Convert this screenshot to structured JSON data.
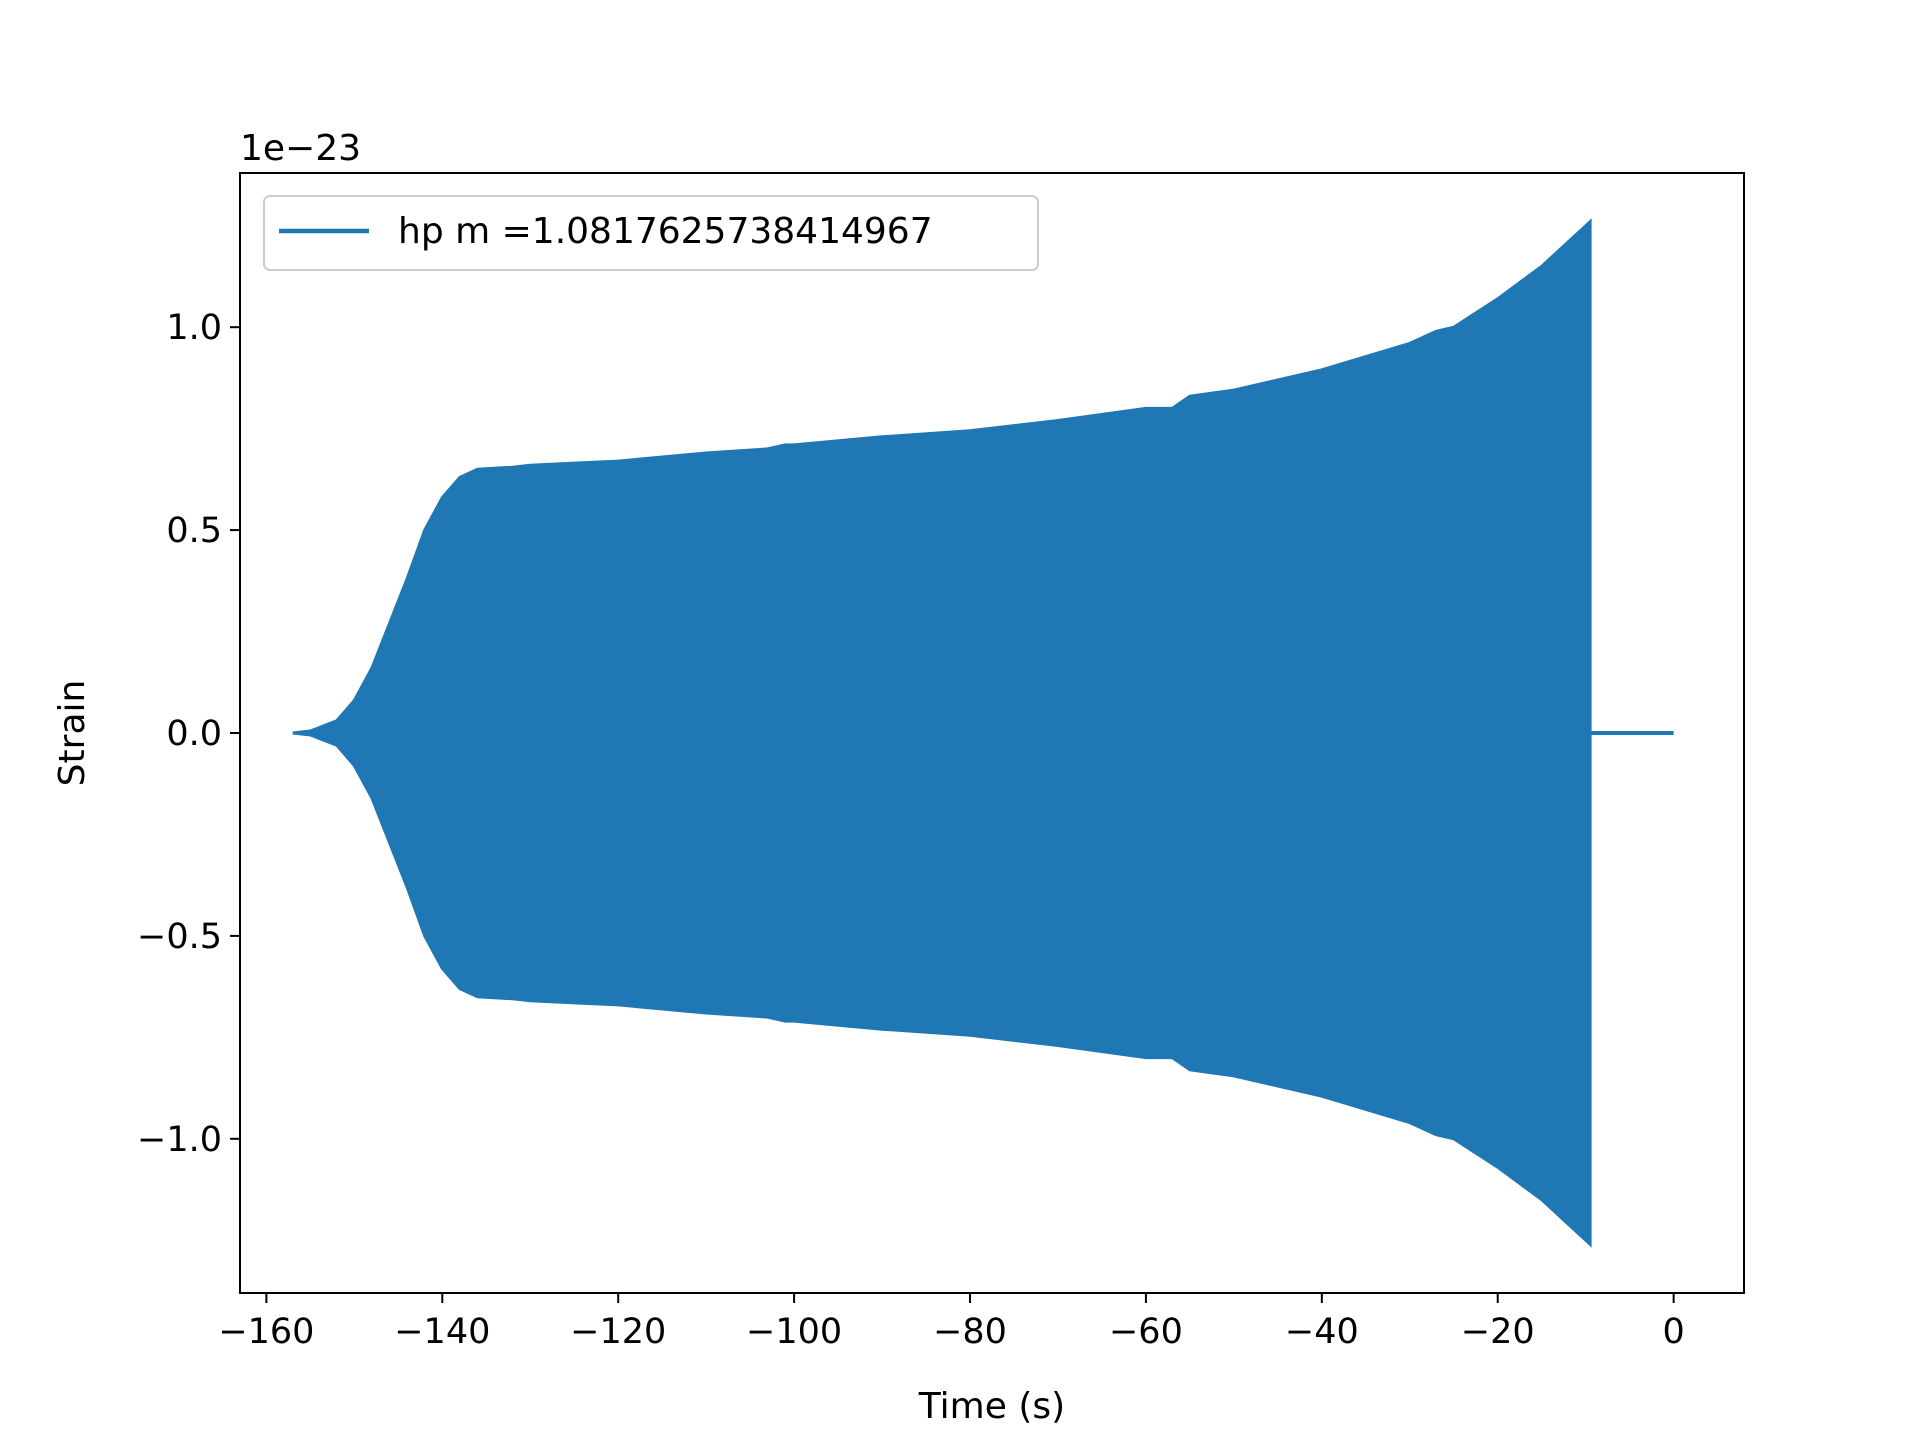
{
  "chart_data": {
    "type": "line",
    "title": "",
    "xlabel": "Time (s)",
    "ylabel": "Strain",
    "y_offset_label": "1e−23",
    "xlim": [
      -163,
      8
    ],
    "ylim": [
      -1.38,
      1.38
    ],
    "x_ticks": [
      -160,
      -140,
      -120,
      -100,
      -80,
      -60,
      -40,
      -20,
      0
    ],
    "x_tick_labels": [
      "−160",
      "−140",
      "−120",
      "−100",
      "−80",
      "−60",
      "−40",
      "−20",
      "0"
    ],
    "y_ticks": [
      -1.0,
      -0.5,
      0.0,
      0.5,
      1.0
    ],
    "y_tick_labels": [
      "−1.0",
      "−0.5",
      "0.0",
      "0.5",
      "1.0"
    ],
    "grid": false,
    "legend_position": "upper-left",
    "series": [
      {
        "name": "hp m =1.0817625738414967",
        "color": "#1f77b4",
        "note_units": "strain in units of 1e-23",
        "x_start": -157,
        "x_end": -9.5,
        "post_merger_x_end": 0,
        "envelope": {
          "x": [
            -157,
            -155,
            -152,
            -150,
            -148,
            -146,
            -144,
            -142,
            -140,
            -138,
            -136,
            -132,
            -130,
            -125,
            -120,
            -110,
            -103,
            -101,
            -100,
            -90,
            -80,
            -70,
            -60,
            -57,
            -55,
            -50,
            -40,
            -30,
            -27,
            -25,
            -20,
            -15,
            -12,
            -10,
            -9.5
          ],
          "upper": [
            0.0,
            0.005,
            0.03,
            0.08,
            0.16,
            0.27,
            0.38,
            0.5,
            0.58,
            0.63,
            0.65,
            0.655,
            0.66,
            0.665,
            0.67,
            0.69,
            0.7,
            0.71,
            0.71,
            0.73,
            0.745,
            0.77,
            0.8,
            0.8,
            0.83,
            0.845,
            0.895,
            0.96,
            0.99,
            1.0,
            1.07,
            1.15,
            1.21,
            1.25,
            1.26
          ],
          "lower": [
            0.0,
            -0.005,
            -0.03,
            -0.08,
            -0.16,
            -0.27,
            -0.38,
            -0.5,
            -0.58,
            -0.63,
            -0.65,
            -0.655,
            -0.66,
            -0.665,
            -0.67,
            -0.69,
            -0.7,
            -0.71,
            -0.71,
            -0.73,
            -0.745,
            -0.77,
            -0.8,
            -0.8,
            -0.83,
            -0.845,
            -0.895,
            -0.96,
            -0.99,
            -1.0,
            -1.07,
            -1.15,
            -1.21,
            -1.25,
            -1.26
          ]
        }
      }
    ]
  }
}
